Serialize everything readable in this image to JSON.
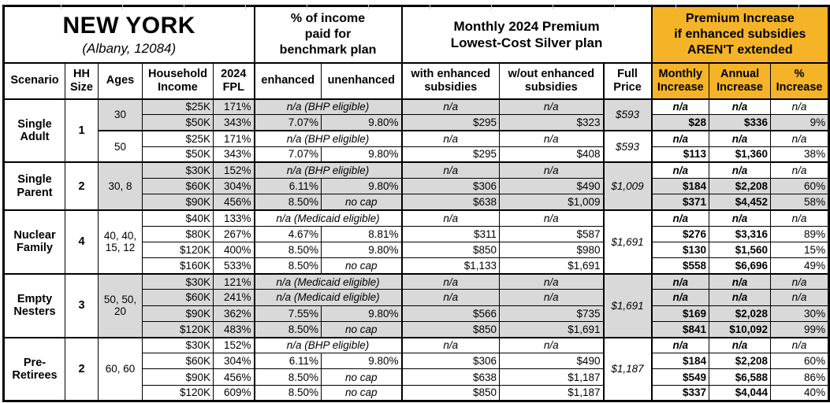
{
  "title": {
    "state": "NEW YORK",
    "location": "(Albany, 12084)"
  },
  "group_headers": {
    "benchmark": "% of income\npaid for\nbenchmark plan",
    "premium": "Monthly 2024 Premium\nLowest-Cost Silver plan",
    "increase": "Premium Increase\nif enhanced subsidies\nAREN'T extended"
  },
  "columns": [
    "Scenario",
    "HH\nSize",
    "Ages",
    "Household\nIncome",
    "2024\nFPL",
    "enhanced",
    "unenhanced",
    "with enhanced\nsubsidies",
    "w/out enhanced\nsubsidies",
    "Full\nPrice",
    "Monthly\nIncrease",
    "Annual\nIncrease",
    "%\nIncrease"
  ],
  "colors": {
    "accent_orange": "#F5B327",
    "row_gray": "#D9D9D9",
    "border": "#000000"
  },
  "blocks": [
    {
      "scenario": "Single Adult",
      "hh": "1",
      "groups": [
        {
          "ages": "30",
          "shade": true,
          "full_price": "$593",
          "rows": [
            {
              "c": [
                "$25K",
                "171%",
                "n/a (BHP eligible)",
                null,
                "n/a",
                "n/a",
                "n/a",
                "n/a",
                "n/a"
              ],
              "inc": false
            },
            {
              "c": [
                "$50K",
                "343%",
                "7.07%",
                "9.80%",
                "$295",
                "$323",
                "$28",
                "$336",
                "9%"
              ],
              "inc": true
            }
          ]
        },
        {
          "ages": "50",
          "shade": false,
          "full_price": "$593",
          "rows": [
            {
              "c": [
                "$25K",
                "171%",
                "n/a (BHP eligible)",
                null,
                "n/a",
                "n/a",
                "n/a",
                "n/a",
                "n/a"
              ],
              "inc": false
            },
            {
              "c": [
                "$50K",
                "343%",
                "7.07%",
                "9.80%",
                "$295",
                "$408",
                "$113",
                "$1,360",
                "38%"
              ],
              "inc": false
            }
          ]
        }
      ]
    },
    {
      "scenario": "Single Parent",
      "hh": "2",
      "groups": [
        {
          "ages": "30, 8",
          "shade": true,
          "full_price": "$1,009",
          "rows": [
            {
              "c": [
                "$30K",
                "152%",
                "n/a (BHP eligible)",
                null,
                "n/a",
                "n/a",
                "n/a",
                "n/a",
                "n/a"
              ],
              "inc": false
            },
            {
              "c": [
                "$60K",
                "304%",
                "6.11%",
                "9.80%",
                "$306",
                "$490",
                "$184",
                "$2,208",
                "60%"
              ],
              "inc": true
            },
            {
              "c": [
                "$90K",
                "456%",
                "8.50%",
                "no cap",
                "$638",
                "$1,009",
                "$371",
                "$4,452",
                "58%"
              ],
              "inc": true
            }
          ]
        }
      ]
    },
    {
      "scenario": "Nuclear Family",
      "hh": "4",
      "groups": [
        {
          "ages": "40, 40, 15, 12",
          "shade": false,
          "full_price": "$1,691",
          "rows": [
            {
              "c": [
                "$40K",
                "133%",
                "n/a (Medicaid eligible)",
                null,
                "n/a",
                "n/a",
                "n/a",
                "n/a",
                "n/a"
              ],
              "inc": false
            },
            {
              "c": [
                "$80K",
                "267%",
                "4.67%",
                "8.81%",
                "$311",
                "$587",
                "$276",
                "$3,316",
                "89%"
              ],
              "inc": false
            },
            {
              "c": [
                "$120K",
                "400%",
                "8.50%",
                "9.80%",
                "$850",
                "$980",
                "$130",
                "$1,560",
                "15%"
              ],
              "inc": false
            },
            {
              "c": [
                "$160K",
                "533%",
                "8.50%",
                "no cap",
                "$1,133",
                "$1,691",
                "$558",
                "$6,696",
                "49%"
              ],
              "inc": false
            }
          ]
        }
      ]
    },
    {
      "scenario": "Empty Nesters",
      "hh": "3",
      "groups": [
        {
          "ages": "50, 50, 20",
          "shade": true,
          "full_price": "$1,691",
          "rows": [
            {
              "c": [
                "$30K",
                "121%",
                "n/a (Medicaid eligible)",
                null,
                "n/a",
                "n/a",
                "n/a",
                "n/a",
                "n/a"
              ],
              "inc": true
            },
            {
              "c": [
                "$60K",
                "241%",
                "n/a (Medicaid eligible)",
                null,
                "n/a",
                "n/a",
                "n/a",
                "n/a",
                "n/a"
              ],
              "inc": true
            },
            {
              "c": [
                "$90K",
                "362%",
                "7.55%",
                "9.80%",
                "$566",
                "$735",
                "$169",
                "$2,028",
                "30%"
              ],
              "inc": true
            },
            {
              "c": [
                "$120K",
                "483%",
                "8.50%",
                "no cap",
                "$850",
                "$1,691",
                "$841",
                "$10,092",
                "99%"
              ],
              "inc": true
            }
          ]
        }
      ]
    },
    {
      "scenario": "Pre-Retirees",
      "hh": "2",
      "groups": [
        {
          "ages": "60, 60",
          "shade": false,
          "full_price": "$1,187",
          "rows": [
            {
              "c": [
                "$30K",
                "152%",
                "n/a (BHP eligible)",
                null,
                "n/a",
                "n/a",
                "n/a",
                "n/a",
                "n/a"
              ],
              "inc": false
            },
            {
              "c": [
                "$60K",
                "304%",
                "6.11%",
                "9.80%",
                "$306",
                "$490",
                "$184",
                "$2,208",
                "60%"
              ],
              "inc": false
            },
            {
              "c": [
                "$90K",
                "456%",
                "8.50%",
                "no cap",
                "$638",
                "$1,187",
                "$549",
                "$6,588",
                "86%"
              ],
              "inc": false
            },
            {
              "c": [
                "$120K",
                "609%",
                "8.50%",
                "no cap",
                "$850",
                "$1,187",
                "$337",
                "$4,044",
                "40%"
              ],
              "inc": false
            }
          ]
        }
      ]
    }
  ]
}
